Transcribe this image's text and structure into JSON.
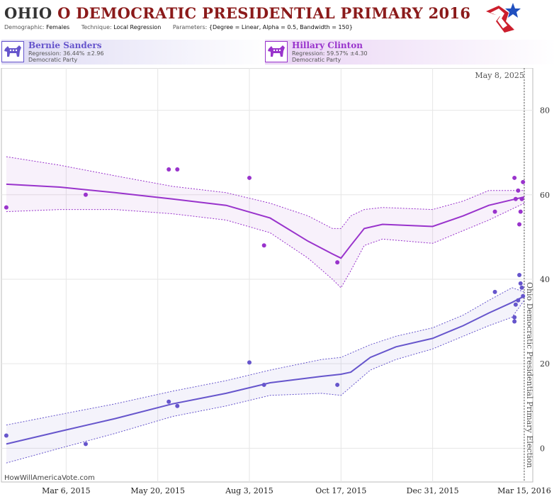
{
  "header": {
    "state": "OHIO",
    "title_rest": "O DEMOCRATIC PRESIDENTIAL PRIMARY 2016",
    "meta": [
      {
        "key": "Demographic:",
        "value": "Females"
      },
      {
        "key": "Technique:",
        "value": "Local Regression"
      },
      {
        "key": "Parameters:",
        "value": "{Degree = Linear, Alpha = 0.5, Bandwidth = 150}"
      }
    ]
  },
  "candidates": [
    {
      "name": "Bernie Sanders",
      "regression": "Regression: 36.44% ±2.96",
      "party": "Democratic Party",
      "color": "#6655cc"
    },
    {
      "name": "Hillary Clinton",
      "regression": "Regression: 59.57% ±4.30",
      "party": "Democratic Party",
      "color": "#9933cc"
    }
  ],
  "source_label": "HowWillAmericaVote.com",
  "chart_data": {
    "type": "scatter",
    "x_ticks": [
      "Mar 6, 2015",
      "May 20, 2015",
      "Aug 3, 2015",
      "Oct 17, 2015",
      "Dec 31, 2015",
      "Mar 15, 2016"
    ],
    "y_ticks": [
      0,
      20,
      40,
      60,
      80
    ],
    "ylim": [
      -8,
      90
    ],
    "xlim": [
      "2015-01-12",
      "2016-03-22"
    ],
    "today_label": "May 8, 2025",
    "election_label": "Ohio Democratic Presidential Primary Election",
    "election_date": "2016-03-15",
    "grid": true,
    "series": [
      {
        "name": "Bernie Sanders",
        "color": "#6655cc",
        "points": [
          [
            "2015-01-16",
            3
          ],
          [
            "2015-03-22",
            1
          ],
          [
            "2015-05-29",
            11
          ],
          [
            "2015-06-05",
            10
          ],
          [
            "2015-08-03",
            20.3
          ],
          [
            "2015-08-15",
            15
          ],
          [
            "2015-10-14",
            15
          ],
          [
            "2016-02-20",
            37
          ],
          [
            "2016-03-07",
            30
          ],
          [
            "2016-03-07",
            31
          ],
          [
            "2016-03-08",
            34
          ],
          [
            "2016-03-10",
            35
          ],
          [
            "2016-03-11",
            41
          ],
          [
            "2016-03-12",
            39
          ],
          [
            "2016-03-13",
            38
          ],
          [
            "2016-03-14",
            36
          ]
        ],
        "trend": [
          [
            "2015-01-16",
            1
          ],
          [
            "2015-03-01",
            4
          ],
          [
            "2015-04-15",
            7
          ],
          [
            "2015-06-01",
            10.5
          ],
          [
            "2015-07-15",
            13
          ],
          [
            "2015-08-20",
            15.5
          ],
          [
            "2015-10-01",
            17
          ],
          [
            "2015-10-17",
            17.5
          ],
          [
            "2015-10-25",
            18
          ],
          [
            "2015-11-10",
            21.5
          ],
          [
            "2015-12-01",
            24
          ],
          [
            "2015-12-31",
            26
          ],
          [
            "2016-01-25",
            29
          ],
          [
            "2016-02-15",
            32
          ],
          [
            "2016-03-05",
            34.5
          ],
          [
            "2016-03-15",
            36
          ]
        ],
        "band_upper": [
          [
            "2015-01-16",
            5.5
          ],
          [
            "2015-03-01",
            8
          ],
          [
            "2015-04-15",
            10.5
          ],
          [
            "2015-06-01",
            13.5
          ],
          [
            "2015-07-15",
            16
          ],
          [
            "2015-08-20",
            18.5
          ],
          [
            "2015-10-01",
            21
          ],
          [
            "2015-10-17",
            21.5
          ],
          [
            "2015-10-25",
            22.5
          ],
          [
            "2015-11-10",
            24.5
          ],
          [
            "2015-12-01",
            26.5
          ],
          [
            "2015-12-31",
            28.5
          ],
          [
            "2016-01-25",
            31.5
          ],
          [
            "2016-02-15",
            35
          ],
          [
            "2016-03-05",
            38
          ],
          [
            "2016-03-15",
            37
          ]
        ],
        "band_lower": [
          [
            "2015-01-16",
            -3.5
          ],
          [
            "2015-03-01",
            0
          ],
          [
            "2015-04-15",
            3.5
          ],
          [
            "2015-06-01",
            7.5
          ],
          [
            "2015-07-15",
            10
          ],
          [
            "2015-08-20",
            12.5
          ],
          [
            "2015-10-01",
            13
          ],
          [
            "2015-10-17",
            12.5
          ],
          [
            "2015-10-25",
            14.5
          ],
          [
            "2015-11-10",
            18.5
          ],
          [
            "2015-12-01",
            21
          ],
          [
            "2015-12-31",
            23.5
          ],
          [
            "2016-01-25",
            26.5
          ],
          [
            "2016-02-15",
            29
          ],
          [
            "2016-03-05",
            31
          ],
          [
            "2016-03-15",
            35
          ]
        ]
      },
      {
        "name": "Hillary Clinton",
        "color": "#9933cc",
        "points": [
          [
            "2015-01-16",
            57
          ],
          [
            "2015-03-22",
            60
          ],
          [
            "2015-05-29",
            66
          ],
          [
            "2015-06-05",
            66
          ],
          [
            "2015-08-03",
            64
          ],
          [
            "2015-08-15",
            48
          ],
          [
            "2015-10-14",
            44
          ],
          [
            "2016-02-20",
            56
          ],
          [
            "2016-03-07",
            64
          ],
          [
            "2016-03-08",
            59
          ],
          [
            "2016-03-10",
            61
          ],
          [
            "2016-03-11",
            53
          ],
          [
            "2016-03-12",
            56
          ],
          [
            "2016-03-13",
            59
          ],
          [
            "2016-03-14",
            63
          ]
        ],
        "trend": [
          [
            "2015-01-16",
            62.5
          ],
          [
            "2015-03-01",
            61.8
          ],
          [
            "2015-04-15",
            60.5
          ],
          [
            "2015-06-01",
            59
          ],
          [
            "2015-07-15",
            57.5
          ],
          [
            "2015-08-20",
            54.5
          ],
          [
            "2015-09-20",
            49
          ],
          [
            "2015-10-10",
            46
          ],
          [
            "2015-10-17",
            45
          ],
          [
            "2015-10-25",
            48
          ],
          [
            "2015-11-05",
            52
          ],
          [
            "2015-11-20",
            53
          ],
          [
            "2015-12-31",
            52.5
          ],
          [
            "2016-01-25",
            55
          ],
          [
            "2016-02-15",
            57.5
          ],
          [
            "2016-03-15",
            59.5
          ]
        ],
        "band_upper": [
          [
            "2015-01-16",
            69
          ],
          [
            "2015-03-01",
            67
          ],
          [
            "2015-04-15",
            64.5
          ],
          [
            "2015-06-01",
            62
          ],
          [
            "2015-07-15",
            60.5
          ],
          [
            "2015-08-20",
            58
          ],
          [
            "2015-09-20",
            55
          ],
          [
            "2015-10-10",
            52
          ],
          [
            "2015-10-17",
            52
          ],
          [
            "2015-10-25",
            55
          ],
          [
            "2015-11-05",
            56.5
          ],
          [
            "2015-11-20",
            57
          ],
          [
            "2015-12-31",
            56.5
          ],
          [
            "2016-01-25",
            58.5
          ],
          [
            "2016-02-15",
            61
          ],
          [
            "2016-03-15",
            61
          ]
        ],
        "band_lower": [
          [
            "2015-01-16",
            56
          ],
          [
            "2015-03-01",
            56.5
          ],
          [
            "2015-04-15",
            56.5
          ],
          [
            "2015-06-01",
            55.5
          ],
          [
            "2015-07-15",
            54
          ],
          [
            "2015-08-20",
            51
          ],
          [
            "2015-09-20",
            45
          ],
          [
            "2015-10-10",
            40
          ],
          [
            "2015-10-17",
            38
          ],
          [
            "2015-10-25",
            42
          ],
          [
            "2015-11-05",
            48
          ],
          [
            "2015-11-20",
            49.5
          ],
          [
            "2015-12-31",
            48.5
          ],
          [
            "2016-01-25",
            51.5
          ],
          [
            "2016-02-15",
            54
          ],
          [
            "2016-03-15",
            58
          ]
        ]
      }
    ]
  }
}
